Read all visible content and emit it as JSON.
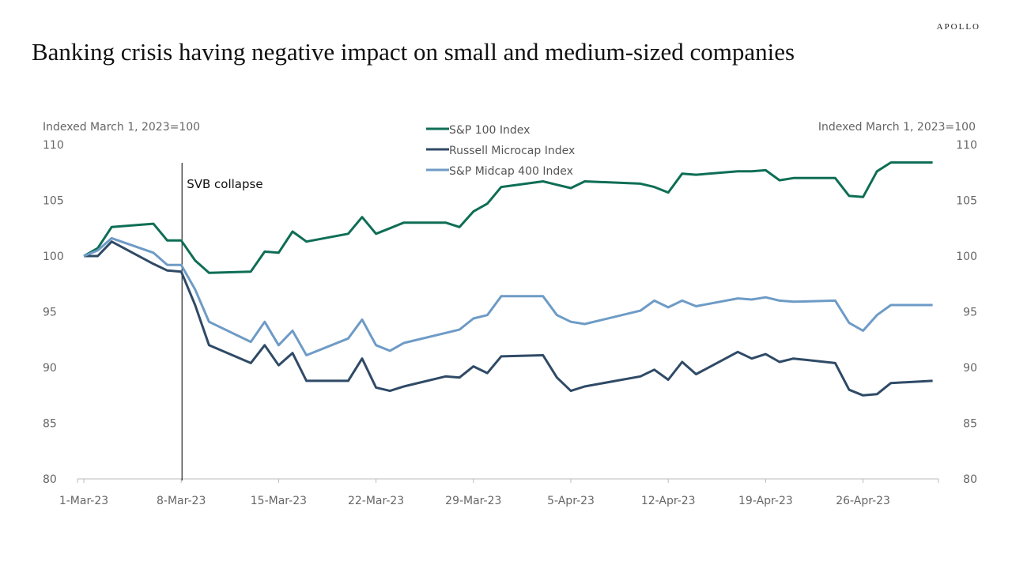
{
  "title": "Banking crisis having negative impact on small and medium-sized companies",
  "logo": "APOLLO",
  "chart_data": {
    "type": "line",
    "ylabel_left": "Indexed March 1, 2023=100",
    "ylabel_right": "Indexed March 1, 2023=100",
    "ylim": [
      80,
      110
    ],
    "yticks": [
      80,
      85,
      90,
      95,
      100,
      105,
      110
    ],
    "xlim": [
      "2023-03-01",
      "2023-05-01"
    ],
    "xticks": [
      {
        "date": "2023-03-01",
        "label": "1-Mar-23"
      },
      {
        "date": "2023-03-08",
        "label": "8-Mar-23"
      },
      {
        "date": "2023-03-15",
        "label": "15-Mar-23"
      },
      {
        "date": "2023-03-22",
        "label": "22-Mar-23"
      },
      {
        "date": "2023-03-29",
        "label": "29-Mar-23"
      },
      {
        "date": "2023-04-05",
        "label": "5-Apr-23"
      },
      {
        "date": "2023-04-12",
        "label": "12-Apr-23"
      },
      {
        "date": "2023-04-19",
        "label": "19-Apr-23"
      },
      {
        "date": "2023-04-26",
        "label": "26-Apr-23"
      }
    ],
    "grid": false,
    "legend_position": "top-center",
    "annotations": [
      {
        "date": "2023-03-08",
        "label": "SVB collapse",
        "type": "vertical-line"
      }
    ],
    "x": [
      "2023-03-01",
      "2023-03-02",
      "2023-03-03",
      "2023-03-06",
      "2023-03-07",
      "2023-03-08",
      "2023-03-09",
      "2023-03-10",
      "2023-03-13",
      "2023-03-14",
      "2023-03-15",
      "2023-03-16",
      "2023-03-17",
      "2023-03-20",
      "2023-03-21",
      "2023-03-22",
      "2023-03-23",
      "2023-03-24",
      "2023-03-27",
      "2023-03-28",
      "2023-03-29",
      "2023-03-30",
      "2023-03-31",
      "2023-04-03",
      "2023-04-04",
      "2023-04-05",
      "2023-04-06",
      "2023-04-10",
      "2023-04-11",
      "2023-04-12",
      "2023-04-13",
      "2023-04-14",
      "2023-04-17",
      "2023-04-18",
      "2023-04-19",
      "2023-04-20",
      "2023-04-21",
      "2023-04-24",
      "2023-04-25",
      "2023-04-26",
      "2023-04-27",
      "2023-04-28",
      "2023-05-01"
    ],
    "series": [
      {
        "name": "S&P 100 Index",
        "color": "#0e6e55",
        "values": [
          100,
          100.7,
          102.6,
          102.9,
          101.4,
          101.4,
          99.6,
          98.5,
          98.6,
          100.4,
          100.3,
          102.2,
          101.3,
          102.0,
          103.5,
          102.0,
          102.5,
          103.0,
          103.0,
          102.6,
          104.0,
          104.7,
          106.2,
          106.7,
          106.4,
          106.1,
          106.7,
          106.5,
          106.2,
          105.7,
          107.4,
          107.3,
          107.6,
          107.6,
          107.7,
          106.8,
          107.0,
          107.0,
          105.4,
          105.3,
          107.6,
          108.4,
          108.4
        ]
      },
      {
        "name": "Russell Microcap Index",
        "color": "#2f4a66",
        "values": [
          100,
          100.0,
          101.3,
          99.3,
          98.7,
          98.6,
          95.6,
          92.0,
          90.4,
          92.0,
          90.2,
          91.3,
          88.8,
          88.8,
          90.8,
          88.2,
          87.9,
          88.3,
          89.2,
          89.1,
          90.1,
          89.5,
          91.0,
          91.1,
          89.1,
          87.9,
          88.3,
          89.2,
          89.8,
          88.9,
          90.5,
          89.4,
          91.4,
          90.8,
          91.2,
          90.5,
          90.8,
          90.4,
          88.0,
          87.5,
          87.6,
          88.6,
          88.8
        ]
      },
      {
        "name": "S&P Midcap 400 Index",
        "color": "#6e9bc6",
        "values": [
          100,
          100.5,
          101.6,
          100.3,
          99.2,
          99.2,
          97.0,
          94.1,
          92.3,
          94.1,
          92.0,
          93.3,
          91.1,
          92.6,
          94.3,
          92.0,
          91.5,
          92.2,
          93.1,
          93.4,
          94.4,
          94.7,
          96.4,
          96.4,
          94.7,
          94.1,
          93.9,
          95.1,
          96.0,
          95.4,
          96.0,
          95.5,
          96.2,
          96.1,
          96.3,
          96.0,
          95.9,
          96.0,
          94.0,
          93.3,
          94.7,
          95.6,
          95.6
        ]
      }
    ]
  }
}
